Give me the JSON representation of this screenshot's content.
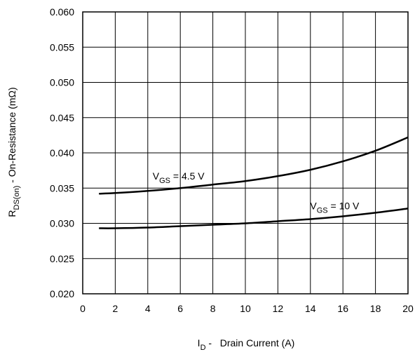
{
  "chart_data": {
    "type": "line",
    "title": "",
    "xlabel": {
      "symbol": "I",
      "sub": "D",
      "text": " -   Drain Current (A)"
    },
    "ylabel": {
      "symbol": "R",
      "sub": "DS(on)",
      "text": " - On-Resistance (mΩ)"
    },
    "xlim": [
      0,
      20
    ],
    "ylim": [
      0.02,
      0.06
    ],
    "xticks": [
      "0",
      "2",
      "4",
      "6",
      "8",
      "10",
      "12",
      "14",
      "16",
      "18",
      "20"
    ],
    "yticks": [
      "0.020",
      "0.025",
      "0.030",
      "0.035",
      "0.040",
      "0.045",
      "0.050",
      "0.055",
      "0.060"
    ],
    "grid": true,
    "series": [
      {
        "annotation": {
          "symbol": "V",
          "sub": "GS",
          "text": " = 4.5 V"
        },
        "x": [
          1,
          2,
          4,
          6,
          8,
          10,
          12,
          14,
          16,
          18,
          20
        ],
        "y": [
          0.0342,
          0.0343,
          0.0346,
          0.035,
          0.0355,
          0.036,
          0.0367,
          0.0376,
          0.0388,
          0.0403,
          0.0422
        ]
      },
      {
        "annotation": {
          "symbol": "V",
          "sub": "GS",
          "text": " = 10 V"
        },
        "x": [
          1,
          2,
          4,
          6,
          8,
          10,
          12,
          14,
          16,
          18,
          20
        ],
        "y": [
          0.0293,
          0.0293,
          0.0294,
          0.0296,
          0.0298,
          0.03,
          0.0303,
          0.0306,
          0.031,
          0.0315,
          0.0321
        ]
      }
    ]
  }
}
